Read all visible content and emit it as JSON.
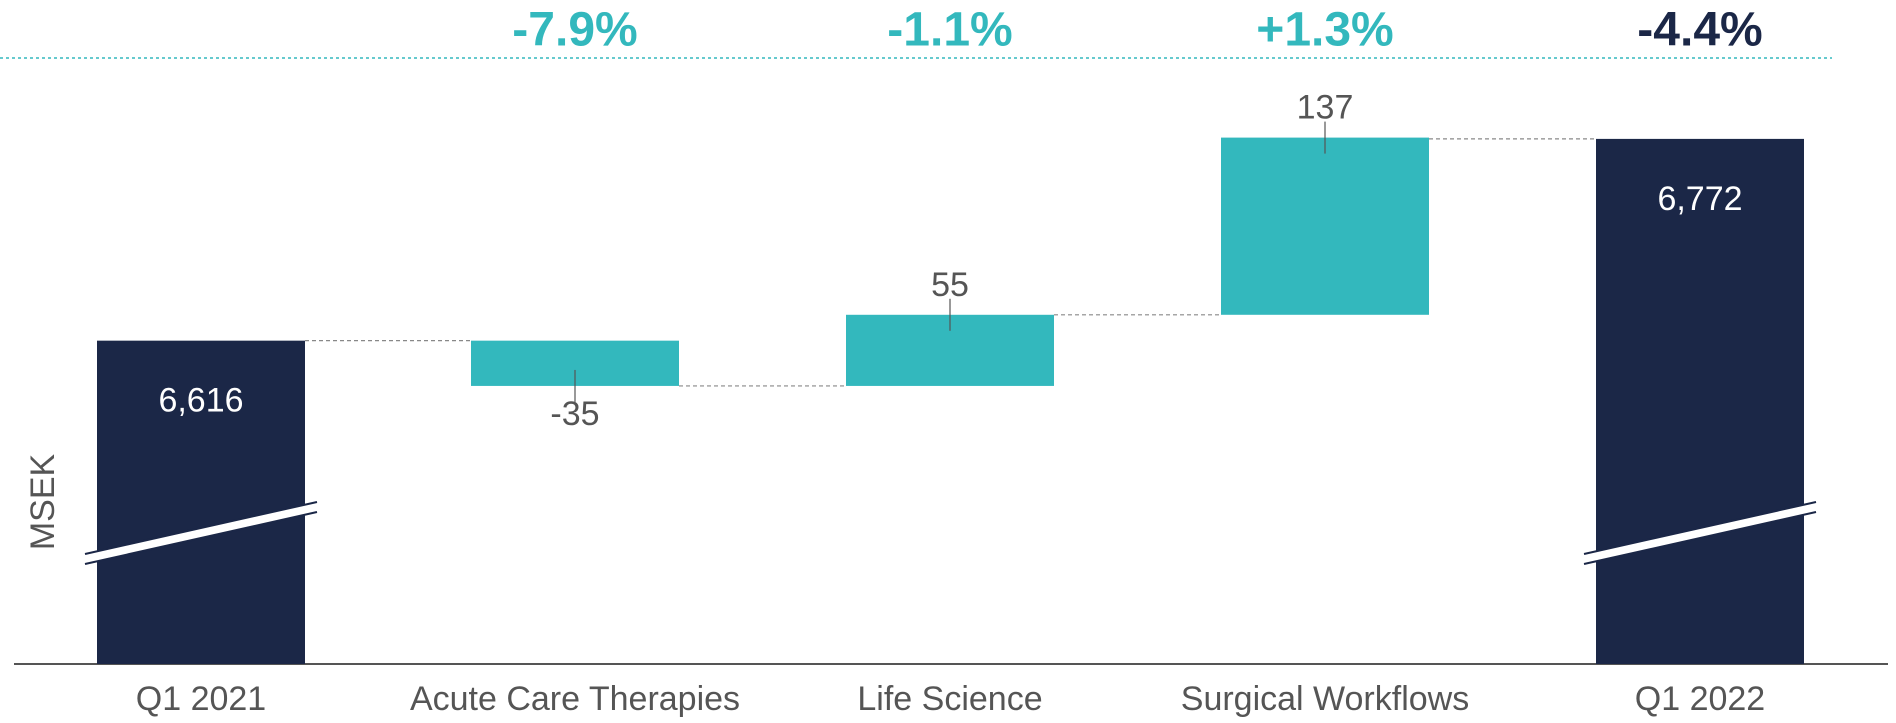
{
  "chart_data": {
    "type": "waterfall",
    "ylabel": "MSEK",
    "categories": [
      "Q1 2021",
      "Acute Care Therapies",
      "Life Science",
      "Surgical Workflows",
      "Q1 2022"
    ],
    "values": [
      6616,
      -35,
      55,
      137,
      6772
    ],
    "value_labels": [
      "6,616",
      "-35",
      "55",
      "137",
      "6,772"
    ],
    "bar_kinds": [
      "total",
      "delta",
      "delta",
      "delta",
      "total"
    ],
    "colors": [
      "#1b2747",
      "#33b8bd",
      "#33b8bd",
      "#33b8bd",
      "#1b2747"
    ],
    "change_labels": [
      null,
      "-7.9%",
      "-1.1%",
      "+1.3%",
      "-4.4%"
    ],
    "ylim": [
      6366,
      6833
    ],
    "axis_break": true
  }
}
